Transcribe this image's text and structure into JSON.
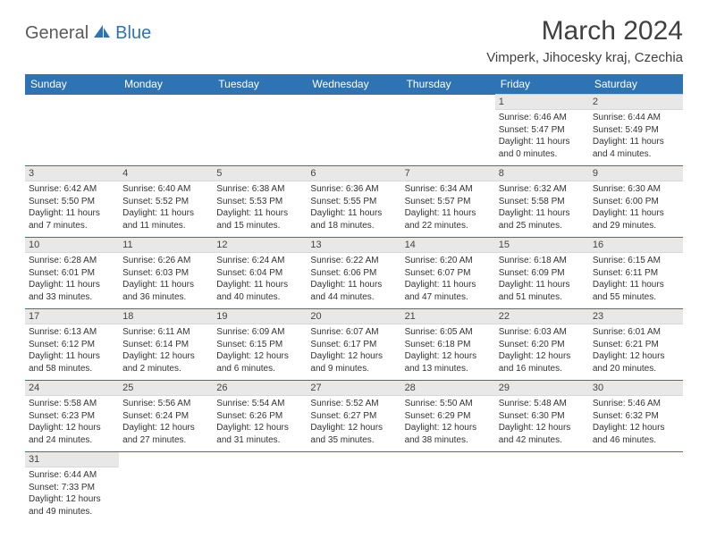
{
  "logo": {
    "general": "General",
    "blue": "Blue"
  },
  "title": "March 2024",
  "location": "Vimperk, Jihocesky kraj, Czechia",
  "colors": {
    "header_bg": "#2e74b5",
    "header_text": "#ffffff",
    "daynum_bg": "#e8e8e8",
    "row_divider": "#2e74b5",
    "text": "#333333"
  },
  "day_headers": [
    "Sunday",
    "Monday",
    "Tuesday",
    "Wednesday",
    "Thursday",
    "Friday",
    "Saturday"
  ],
  "weeks": [
    [
      null,
      null,
      null,
      null,
      null,
      {
        "n": "1",
        "sr": "Sunrise: 6:46 AM",
        "ss": "Sunset: 5:47 PM",
        "d1": "Daylight: 11 hours",
        "d2": "and 0 minutes."
      },
      {
        "n": "2",
        "sr": "Sunrise: 6:44 AM",
        "ss": "Sunset: 5:49 PM",
        "d1": "Daylight: 11 hours",
        "d2": "and 4 minutes."
      }
    ],
    [
      {
        "n": "3",
        "sr": "Sunrise: 6:42 AM",
        "ss": "Sunset: 5:50 PM",
        "d1": "Daylight: 11 hours",
        "d2": "and 7 minutes."
      },
      {
        "n": "4",
        "sr": "Sunrise: 6:40 AM",
        "ss": "Sunset: 5:52 PM",
        "d1": "Daylight: 11 hours",
        "d2": "and 11 minutes."
      },
      {
        "n": "5",
        "sr": "Sunrise: 6:38 AM",
        "ss": "Sunset: 5:53 PM",
        "d1": "Daylight: 11 hours",
        "d2": "and 15 minutes."
      },
      {
        "n": "6",
        "sr": "Sunrise: 6:36 AM",
        "ss": "Sunset: 5:55 PM",
        "d1": "Daylight: 11 hours",
        "d2": "and 18 minutes."
      },
      {
        "n": "7",
        "sr": "Sunrise: 6:34 AM",
        "ss": "Sunset: 5:57 PM",
        "d1": "Daylight: 11 hours",
        "d2": "and 22 minutes."
      },
      {
        "n": "8",
        "sr": "Sunrise: 6:32 AM",
        "ss": "Sunset: 5:58 PM",
        "d1": "Daylight: 11 hours",
        "d2": "and 25 minutes."
      },
      {
        "n": "9",
        "sr": "Sunrise: 6:30 AM",
        "ss": "Sunset: 6:00 PM",
        "d1": "Daylight: 11 hours",
        "d2": "and 29 minutes."
      }
    ],
    [
      {
        "n": "10",
        "sr": "Sunrise: 6:28 AM",
        "ss": "Sunset: 6:01 PM",
        "d1": "Daylight: 11 hours",
        "d2": "and 33 minutes."
      },
      {
        "n": "11",
        "sr": "Sunrise: 6:26 AM",
        "ss": "Sunset: 6:03 PM",
        "d1": "Daylight: 11 hours",
        "d2": "and 36 minutes."
      },
      {
        "n": "12",
        "sr": "Sunrise: 6:24 AM",
        "ss": "Sunset: 6:04 PM",
        "d1": "Daylight: 11 hours",
        "d2": "and 40 minutes."
      },
      {
        "n": "13",
        "sr": "Sunrise: 6:22 AM",
        "ss": "Sunset: 6:06 PM",
        "d1": "Daylight: 11 hours",
        "d2": "and 44 minutes."
      },
      {
        "n": "14",
        "sr": "Sunrise: 6:20 AM",
        "ss": "Sunset: 6:07 PM",
        "d1": "Daylight: 11 hours",
        "d2": "and 47 minutes."
      },
      {
        "n": "15",
        "sr": "Sunrise: 6:18 AM",
        "ss": "Sunset: 6:09 PM",
        "d1": "Daylight: 11 hours",
        "d2": "and 51 minutes."
      },
      {
        "n": "16",
        "sr": "Sunrise: 6:15 AM",
        "ss": "Sunset: 6:11 PM",
        "d1": "Daylight: 11 hours",
        "d2": "and 55 minutes."
      }
    ],
    [
      {
        "n": "17",
        "sr": "Sunrise: 6:13 AM",
        "ss": "Sunset: 6:12 PM",
        "d1": "Daylight: 11 hours",
        "d2": "and 58 minutes."
      },
      {
        "n": "18",
        "sr": "Sunrise: 6:11 AM",
        "ss": "Sunset: 6:14 PM",
        "d1": "Daylight: 12 hours",
        "d2": "and 2 minutes."
      },
      {
        "n": "19",
        "sr": "Sunrise: 6:09 AM",
        "ss": "Sunset: 6:15 PM",
        "d1": "Daylight: 12 hours",
        "d2": "and 6 minutes."
      },
      {
        "n": "20",
        "sr": "Sunrise: 6:07 AM",
        "ss": "Sunset: 6:17 PM",
        "d1": "Daylight: 12 hours",
        "d2": "and 9 minutes."
      },
      {
        "n": "21",
        "sr": "Sunrise: 6:05 AM",
        "ss": "Sunset: 6:18 PM",
        "d1": "Daylight: 12 hours",
        "d2": "and 13 minutes."
      },
      {
        "n": "22",
        "sr": "Sunrise: 6:03 AM",
        "ss": "Sunset: 6:20 PM",
        "d1": "Daylight: 12 hours",
        "d2": "and 16 minutes."
      },
      {
        "n": "23",
        "sr": "Sunrise: 6:01 AM",
        "ss": "Sunset: 6:21 PM",
        "d1": "Daylight: 12 hours",
        "d2": "and 20 minutes."
      }
    ],
    [
      {
        "n": "24",
        "sr": "Sunrise: 5:58 AM",
        "ss": "Sunset: 6:23 PM",
        "d1": "Daylight: 12 hours",
        "d2": "and 24 minutes."
      },
      {
        "n": "25",
        "sr": "Sunrise: 5:56 AM",
        "ss": "Sunset: 6:24 PM",
        "d1": "Daylight: 12 hours",
        "d2": "and 27 minutes."
      },
      {
        "n": "26",
        "sr": "Sunrise: 5:54 AM",
        "ss": "Sunset: 6:26 PM",
        "d1": "Daylight: 12 hours",
        "d2": "and 31 minutes."
      },
      {
        "n": "27",
        "sr": "Sunrise: 5:52 AM",
        "ss": "Sunset: 6:27 PM",
        "d1": "Daylight: 12 hours",
        "d2": "and 35 minutes."
      },
      {
        "n": "28",
        "sr": "Sunrise: 5:50 AM",
        "ss": "Sunset: 6:29 PM",
        "d1": "Daylight: 12 hours",
        "d2": "and 38 minutes."
      },
      {
        "n": "29",
        "sr": "Sunrise: 5:48 AM",
        "ss": "Sunset: 6:30 PM",
        "d1": "Daylight: 12 hours",
        "d2": "and 42 minutes."
      },
      {
        "n": "30",
        "sr": "Sunrise: 5:46 AM",
        "ss": "Sunset: 6:32 PM",
        "d1": "Daylight: 12 hours",
        "d2": "and 46 minutes."
      }
    ],
    [
      {
        "n": "31",
        "sr": "Sunrise: 6:44 AM",
        "ss": "Sunset: 7:33 PM",
        "d1": "Daylight: 12 hours",
        "d2": "and 49 minutes."
      },
      null,
      null,
      null,
      null,
      null,
      null
    ]
  ]
}
